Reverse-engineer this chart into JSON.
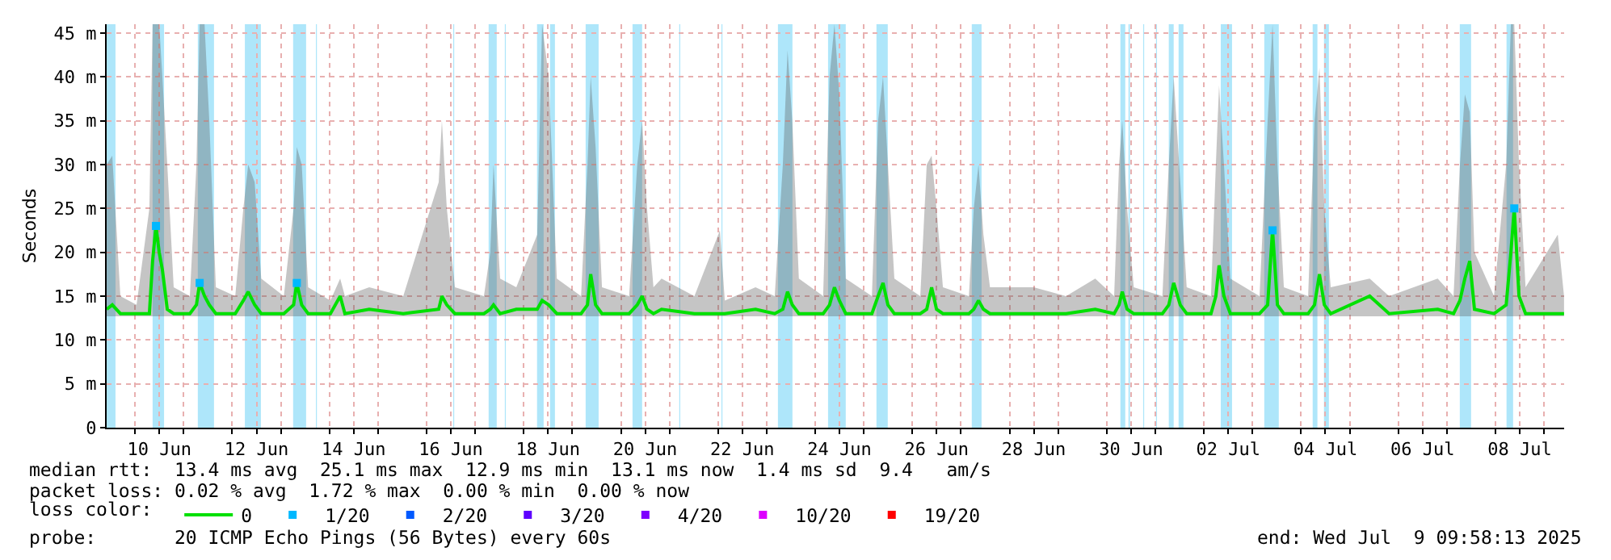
{
  "chart_data": {
    "type": "line",
    "ylabel": "Seconds",
    "legend_title": "loss color:",
    "legend": "bottom",
    "grid": true,
    "line_style": "solid",
    "xlim": [
      "2025-06-09T09:58",
      "2025-07-09T09:58"
    ],
    "ylim": [
      0,
      46
    ],
    "yticks": [
      0,
      {
        "value": 5,
        "label": "5 m"
      },
      {
        "value": 10,
        "label": "10 m"
      },
      {
        "value": 15,
        "label": "15 m"
      },
      {
        "value": 20,
        "label": "20 m"
      },
      {
        "value": 25,
        "label": "25 m"
      },
      {
        "value": 30,
        "label": "30 m"
      },
      {
        "value": 35,
        "label": "35 m"
      },
      {
        "value": 40,
        "label": "40 m"
      },
      {
        "value": 45,
        "label": "45 m"
      }
    ],
    "xticks": [
      {
        "value": "2025-06-10T12:00",
        "label": "10 Jun"
      },
      {
        "value": "2025-06-12T12:00",
        "label": "12 Jun"
      },
      {
        "value": "2025-06-14T12:00",
        "label": "14 Jun"
      },
      {
        "value": "2025-06-16T12:00",
        "label": "16 Jun"
      },
      {
        "value": "2025-06-18T12:00",
        "label": "18 Jun"
      },
      {
        "value": "2025-06-20T12:00",
        "label": "20 Jun"
      },
      {
        "value": "2025-06-22T12:00",
        "label": "22 Jun"
      },
      {
        "value": "2025-06-24T12:00",
        "label": "24 Jun"
      },
      {
        "value": "2025-06-26T12:00",
        "label": "26 Jun"
      },
      {
        "value": "2025-06-28T12:00",
        "label": "28 Jun"
      },
      {
        "value": "2025-06-30T12:00",
        "label": "30 Jun"
      },
      {
        "value": "2025-07-02T12:00",
        "label": "02 Jul"
      },
      {
        "value": "2025-07-04T12:00",
        "label": "04 Jul"
      },
      {
        "value": "2025-07-06T12:00",
        "label": "06 Jul"
      },
      {
        "value": "2025-07-08T12:00",
        "label": "08 Jul"
      },
      {
        "value": "2025-06-10",
        "label": null
      },
      {
        "value": "2025-06-11",
        "label": null
      },
      {
        "value": "2025-06-12",
        "label": null
      },
      {
        "value": "2025-06-13",
        "label": null
      },
      {
        "value": "2025-06-14",
        "label": null
      },
      {
        "value": "2025-06-15",
        "label": null
      },
      {
        "value": "2025-06-16",
        "label": null
      },
      {
        "value": "2025-06-17",
        "label": null
      },
      {
        "value": "2025-06-18",
        "label": null
      },
      {
        "value": "2025-06-19",
        "label": null
      },
      {
        "value": "2025-06-20",
        "label": null
      },
      {
        "value": "2025-06-21",
        "label": null
      },
      {
        "value": "2025-06-22",
        "label": null
      },
      {
        "value": "2025-06-23",
        "label": null
      },
      {
        "value": "2025-06-24",
        "label": null
      },
      {
        "value": "2025-06-25",
        "label": null
      },
      {
        "value": "2025-06-26",
        "label": null
      },
      {
        "value": "2025-06-27",
        "label": null
      },
      {
        "value": "2025-06-28",
        "label": null
      },
      {
        "value": "2025-06-29",
        "label": null
      },
      {
        "value": "2025-06-30",
        "label": null
      },
      {
        "value": "2025-07-01",
        "label": null
      },
      {
        "value": "2025-07-02",
        "label": null
      },
      {
        "value": "2025-07-03",
        "label": null
      },
      {
        "value": "2025-07-04",
        "label": null
      },
      {
        "value": "2025-07-05",
        "label": null
      },
      {
        "value": "2025-07-06",
        "label": null
      },
      {
        "value": "2025-07-07",
        "label": null
      },
      {
        "value": "2025-07-08",
        "label": null
      },
      {
        "value": "2025-07-09",
        "label": null
      }
    ],
    "bands": [
      {
        "axis": "x",
        "from": "2025-06-09T09:58",
        "to": "2025-06-09T14:20",
        "color": "#aee6fa"
      },
      {
        "axis": "x",
        "from": "2025-06-10T08:40",
        "to": "2025-06-10T14:20",
        "color": "#aee6fa"
      },
      {
        "axis": "x",
        "from": "2025-06-11T07:00",
        "to": "2025-06-11T15:00",
        "color": "#aee6fa"
      },
      {
        "axis": "x",
        "from": "2025-06-12T06:15",
        "to": "2025-06-12T14:10",
        "color": "#aee6fa"
      },
      {
        "axis": "x",
        "from": "2025-06-13T06:05",
        "to": "2025-06-13T12:30",
        "color": "#aee6fa"
      },
      {
        "axis": "x",
        "from": "2025-06-13T17:20",
        "to": "2025-06-13T17:50",
        "color": "#aee6fa"
      },
      {
        "axis": "x",
        "from": "2025-06-16T13:10",
        "to": "2025-06-16T13:40",
        "color": "#aee6fa"
      },
      {
        "axis": "x",
        "from": "2025-06-17T06:40",
        "to": "2025-06-17T10:40",
        "color": "#aee6fa"
      },
      {
        "axis": "x",
        "from": "2025-06-17T14:40",
        "to": "2025-06-17T15:10",
        "color": "#aee6fa"
      },
      {
        "axis": "x",
        "from": "2025-06-18T06:35",
        "to": "2025-06-18T09:50",
        "color": "#aee6fa"
      },
      {
        "axis": "x",
        "from": "2025-06-18T13:00",
        "to": "2025-06-18T15:25",
        "color": "#aee6fa"
      },
      {
        "axis": "x",
        "from": "2025-06-19T06:35",
        "to": "2025-06-19T13:00",
        "color": "#aee6fa"
      },
      {
        "axis": "x",
        "from": "2025-06-20T05:45",
        "to": "2025-06-20T10:30",
        "color": "#aee6fa"
      },
      {
        "axis": "x",
        "from": "2025-06-21T04:50",
        "to": "2025-06-21T05:20",
        "color": "#aee6fa"
      },
      {
        "axis": "x",
        "from": "2025-06-22T01:40",
        "to": "2025-06-22T02:10",
        "color": "#aee6fa"
      },
      {
        "axis": "x",
        "from": "2025-06-23T05:35",
        "to": "2025-06-23T12:45",
        "color": "#aee6fa"
      },
      {
        "axis": "x",
        "from": "2025-06-24T06:20",
        "to": "2025-06-24T15:05",
        "color": "#aee6fa"
      },
      {
        "axis": "x",
        "from": "2025-06-25T06:15",
        "to": "2025-06-25T11:50",
        "color": "#aee6fa"
      },
      {
        "axis": "x",
        "from": "2025-06-27T05:20",
        "to": "2025-06-27T10:10",
        "color": "#aee6fa"
      },
      {
        "axis": "x",
        "from": "2025-06-30T06:45",
        "to": "2025-06-30T09:10",
        "color": "#aee6fa"
      },
      {
        "axis": "x",
        "from": "2025-06-30T10:45",
        "to": "2025-06-30T11:30",
        "color": "#aee6fa"
      },
      {
        "axis": "x",
        "from": "2025-06-30T18:00",
        "to": "2025-06-30T18:30",
        "color": "#aee6fa"
      },
      {
        "axis": "x",
        "from": "2025-07-01T00:20",
        "to": "2025-07-01T00:50",
        "color": "#aee6fa"
      },
      {
        "axis": "x",
        "from": "2025-07-01T06:40",
        "to": "2025-07-01T09:05",
        "color": "#aee6fa"
      },
      {
        "axis": "x",
        "from": "2025-07-01T11:30",
        "to": "2025-07-01T13:55",
        "color": "#aee6fa"
      },
      {
        "axis": "x",
        "from": "2025-07-02T08:20",
        "to": "2025-07-02T13:55",
        "color": "#aee6fa"
      },
      {
        "axis": "x",
        "from": "2025-07-03T05:50",
        "to": "2025-07-03T13:00",
        "color": "#aee6fa"
      },
      {
        "axis": "x",
        "from": "2025-07-04T05:45",
        "to": "2025-07-04T08:05",
        "color": "#aee6fa"
      },
      {
        "axis": "x",
        "from": "2025-07-04T11:20",
        "to": "2025-07-04T13:45",
        "color": "#aee6fa"
      },
      {
        "axis": "x",
        "from": "2025-07-07T06:25",
        "to": "2025-07-07T12:00",
        "color": "#aee6fa"
      },
      {
        "axis": "x",
        "from": "2025-07-08T05:30",
        "to": "2025-07-08T08:45",
        "color": "#aee6fa"
      }
    ],
    "series": [
      {
        "name": "0",
        "color": "#00e000",
        "x": [
          "2025-06-09T10:00",
          "2025-06-09T12:45",
          "2025-06-09T16:45",
          "2025-06-10T00:45",
          "2025-06-10T07:05",
          "2025-06-10T08:40",
          "2025-06-10T10:20",
          "2025-06-10T11:55",
          "2025-06-10T13:30",
          "2025-06-10T15:55",
          "2025-06-10T19:05",
          "2025-06-11T03:05",
          "2025-06-11T06:20",
          "2025-06-11T07:55",
          "2025-06-11T10:20",
          "2025-06-11T12:40",
          "2025-06-11T15:55",
          "2025-06-12T01:30",
          "2025-06-12T05:30",
          "2025-06-12T07:55",
          "2025-06-12T11:05",
          "2025-06-12T14:20",
          "2025-06-13T01:30",
          "2025-06-13T06:20",
          "2025-06-13T07:55",
          "2025-06-13T10:20",
          "2025-06-13T13:30",
          "2025-06-14T00:30",
          "2025-06-14T05:20",
          "2025-06-14T07:40",
          "2025-06-14T19:40",
          "2025-06-15T12:30",
          "2025-06-16T06:00",
          "2025-06-16T07:35",
          "2025-06-16T10:00",
          "2025-06-16T14:00",
          "2025-06-17T04:20",
          "2025-06-17T07:30",
          "2025-06-17T09:05",
          "2025-06-17T12:20",
          "2025-06-17T20:20",
          "2025-06-18T06:40",
          "2025-06-18T09:05",
          "2025-06-18T12:20",
          "2025-06-18T16:20",
          "2025-06-19T04:20",
          "2025-06-19T07:30",
          "2025-06-19T09:05",
          "2025-06-19T11:30",
          "2025-06-19T14:40",
          "2025-06-20T04:05",
          "2025-06-20T08:05",
          "2025-06-20T10:30",
          "2025-06-20T12:55",
          "2025-06-20T16:05",
          "2025-06-20T20:05",
          "2025-06-21T12:20",
          "2025-06-22T00:55",
          "2025-06-22T03:20",
          "2025-06-22T18:30",
          "2025-06-23T04:00",
          "2025-06-23T08:00",
          "2025-06-23T10:20",
          "2025-06-23T12:40",
          "2025-06-23T15:55",
          "2025-06-24T03:55",
          "2025-06-24T07:05",
          "2025-06-24T09:30",
          "2025-06-24T11:55",
          "2025-06-24T15:05",
          "2025-06-25T04:00",
          "2025-06-25T07:05",
          "2025-06-25T09:30",
          "2025-06-25T11:55",
          "2025-06-25T15:05",
          "2025-06-26T03:55",
          "2025-06-26T07:05",
          "2025-06-26T09:30",
          "2025-06-26T11:55",
          "2025-06-26T15:05",
          "2025-06-27T03:55",
          "2025-06-27T06:20",
          "2025-06-27T08:40",
          "2025-06-27T11:05",
          "2025-06-27T14:20",
          "2025-06-28T11:55",
          "2025-06-29T03:55",
          "2025-06-29T18:20",
          "2025-06-30T03:40",
          "2025-06-30T06:05",
          "2025-06-30T07:40",
          "2025-06-30T10:05",
          "2025-06-30T13:20",
          "2025-07-01T03:30",
          "2025-07-01T06:40",
          "2025-07-01T09:05",
          "2025-07-01T12:20",
          "2025-07-01T15:30",
          "2025-07-02T03:30",
          "2025-07-02T05:55",
          "2025-07-02T07:30",
          "2025-07-02T09:55",
          "2025-07-02T13:05",
          "2025-07-03T03:30",
          "2025-07-03T07:30",
          "2025-07-03T09:55",
          "2025-07-03T12:20",
          "2025-07-03T15:30",
          "2025-07-04T03:30",
          "2025-07-04T06:40",
          "2025-07-04T09:05",
          "2025-07-04T11:30",
          "2025-07-04T14:40",
          "2025-07-05T09:55",
          "2025-07-05T19:30",
          "2025-07-06T19:30",
          "2025-07-07T03:20",
          "2025-07-07T06:30",
          "2025-07-07T08:55",
          "2025-07-07T11:20",
          "2025-07-07T13:40",
          "2025-07-07T23:20",
          "2025-07-08T05:20",
          "2025-07-08T07:40",
          "2025-07-08T09:20",
          "2025-07-08T11:40",
          "2025-07-08T14:55",
          "2025-07-09T06:50",
          "2025-07-09T09:55"
        ],
        "values": [
          13.5,
          14,
          13,
          13,
          13,
          19,
          23,
          20,
          18,
          13.5,
          13,
          13,
          14,
          16.5,
          15,
          14,
          13,
          13,
          14.5,
          15.5,
          14,
          13,
          13,
          14,
          16.5,
          14,
          13,
          13,
          15,
          13,
          13.5,
          13,
          13.5,
          15,
          14,
          13,
          13,
          13.5,
          14,
          13,
          13.5,
          13.5,
          14.5,
          14,
          13,
          13,
          14,
          17.5,
          14,
          13,
          13,
          14,
          15,
          13.5,
          13,
          13.5,
          13,
          13,
          13,
          13.5,
          13,
          13.5,
          15.5,
          14,
          13,
          13,
          14,
          16,
          14.5,
          13,
          13,
          15,
          16.5,
          14,
          13,
          13,
          13.5,
          16,
          13.5,
          13,
          13,
          13.5,
          14.5,
          13.5,
          13,
          13,
          13,
          13.5,
          13,
          14,
          15.5,
          13.5,
          13,
          13,
          14,
          16.5,
          14,
          13,
          13,
          15,
          18.5,
          15,
          13,
          13,
          14,
          22.5,
          14,
          13,
          13,
          14,
          17.5,
          14,
          13,
          15,
          13,
          13.5,
          13,
          14.5,
          17,
          19,
          13.5,
          13,
          14,
          20,
          25,
          15,
          13,
          13,
          13
        ],
        "lower": [
          12.7,
          12.7,
          12.7,
          12.7,
          12.7,
          12.7,
          12.7,
          12.7,
          12.7,
          12.7,
          12.7,
          12.7,
          12.7,
          12.7,
          12.7,
          12.7,
          12.7,
          12.7,
          12.7,
          12.7,
          12.7,
          12.7,
          12.7,
          12.7,
          12.7,
          12.7,
          12.7,
          12.7,
          12.7,
          12.7,
          12.7,
          12.7,
          12.7,
          12.7,
          12.7,
          12.7,
          12.7,
          12.7,
          12.7,
          12.7,
          12.7,
          12.7,
          12.7,
          12.7,
          12.7,
          12.7,
          12.7,
          12.7,
          12.7,
          12.7,
          12.7,
          12.7,
          12.7,
          12.7,
          12.7,
          12.7,
          12.7,
          12.7,
          12.7,
          12.7,
          12.7,
          12.7,
          12.7,
          12.7,
          12.7,
          12.7,
          12.7,
          12.7,
          12.7,
          12.7,
          12.7,
          12.7,
          12.7,
          12.7,
          12.7,
          12.7,
          12.7,
          12.7,
          12.7,
          12.7,
          12.7,
          12.7,
          12.7,
          12.7,
          12.7,
          12.7,
          12.7,
          12.7,
          12.7,
          12.7,
          12.7,
          12.7,
          12.7,
          12.7,
          12.7,
          12.7,
          12.7,
          12.7,
          12.7,
          12.7,
          12.7,
          12.7,
          12.7,
          12.7,
          12.7,
          12.7,
          12.7,
          12.7,
          12.7,
          12.7,
          12.7,
          12.7,
          12.7,
          12.7,
          12.7,
          12.7,
          12.7,
          12.7,
          12.7,
          12.7,
          12.7,
          12.7,
          12.7,
          12.7,
          12.7,
          12.7,
          12.7,
          12.7,
          12.7
        ],
        "upper": [
          30,
          31,
          15,
          14,
          25,
          46,
          46,
          46,
          40,
          30,
          16,
          15,
          30,
          46,
          46,
          35,
          16,
          15,
          25,
          30,
          28,
          17,
          15,
          25,
          32,
          30,
          16,
          14.5,
          17,
          15,
          16,
          15,
          28,
          35,
          25,
          16,
          15,
          20,
          30,
          17,
          16,
          22,
          46,
          40,
          17,
          15,
          30,
          40,
          32,
          16,
          15,
          30,
          35,
          25,
          16,
          17,
          15,
          22.5,
          14.5,
          16,
          15,
          30,
          43,
          35,
          17,
          15,
          40,
          46,
          38,
          17,
          15,
          35,
          40,
          30,
          17,
          15,
          30,
          31,
          25,
          16,
          15,
          25,
          30,
          22,
          16,
          16,
          15,
          17,
          15,
          30,
          35,
          25,
          16,
          15,
          30,
          40,
          28,
          16,
          15,
          30,
          39,
          30,
          17,
          15,
          35,
          46,
          30,
          16,
          15,
          35,
          41,
          25,
          16,
          17,
          15,
          17,
          15,
          30,
          38,
          36,
          20,
          15,
          30,
          46,
          46,
          30,
          16,
          22,
          15
        ]
      },
      {
        "name": "1/20",
        "type": "scatter",
        "marker": "square",
        "color": "#00b8ff",
        "x": [
          "2025-06-10T10:20",
          "2025-06-11T07:55",
          "2025-06-13T07:55",
          "2025-07-03T09:55",
          "2025-07-08T09:20"
        ],
        "values": [
          23,
          16.5,
          16.5,
          22.5,
          25
        ]
      },
      {
        "name": "2/20",
        "type": "scatter",
        "marker": "square",
        "color": "#0059ff"
      },
      {
        "name": "3/20",
        "type": "scatter",
        "marker": "square",
        "color": "#5e00ff"
      },
      {
        "name": "4/20",
        "type": "scatter",
        "marker": "square",
        "color": "#7e00ff"
      },
      {
        "name": "10/20",
        "type": "scatter",
        "marker": "square",
        "color": "#dd00ff"
      },
      {
        "name": "19/20",
        "type": "scatter",
        "marker": "square",
        "color": "#ff0000"
      }
    ],
    "annotations": [
      "median rtt:  13.4 ms avg  25.1 ms max  12.9 ms min  13.1 ms now  1.4 ms sd  9.4   am/s",
      "packet loss: 0.02 % avg  1.72 % max  0.00 % min  0.00 % now",
      "probe:       20 ICMP Echo Pings (56 Bytes) every 60s",
      "end: Wed Jul  9 09:58:13 2025"
    ]
  }
}
